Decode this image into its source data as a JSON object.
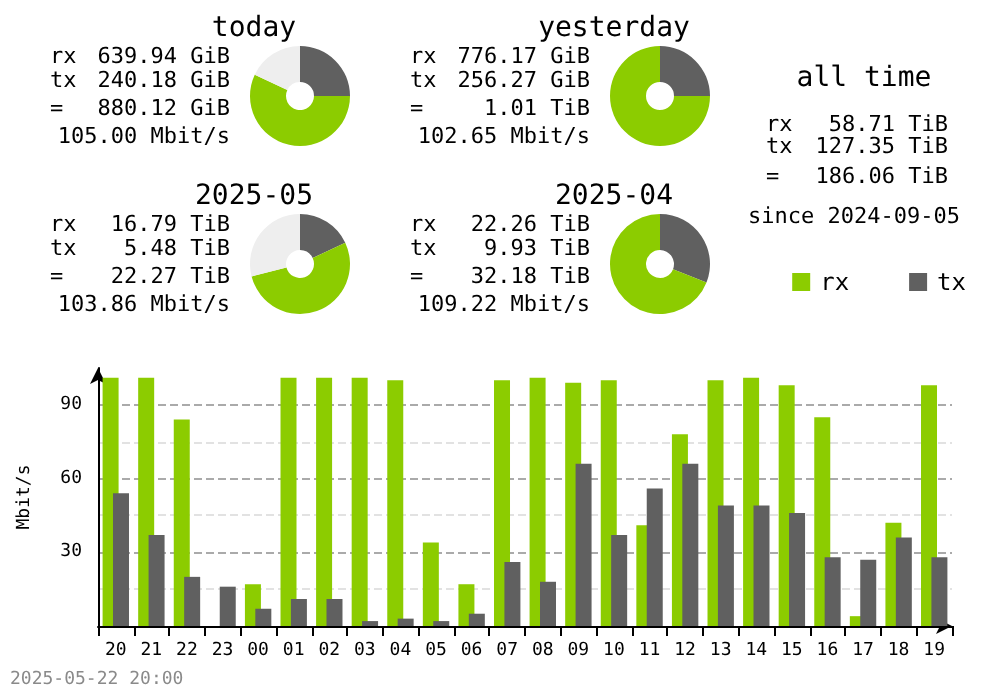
{
  "chart_data": [
    {
      "type": "donut",
      "title": "today",
      "categories": [
        null,
        null,
        null
      ],
      "values": [
        25,
        57,
        18
      ],
      "colors": [
        "#606060",
        "#8ccc00",
        "#eeeeee"
      ],
      "annotations": [
        "rx",
        "639.94 GiB",
        "tx",
        "240.18 GiB",
        "=",
        "880.12 GiB",
        "105.00 Mbit/s"
      ]
    },
    {
      "type": "donut",
      "title": "yesterday",
      "categories": [
        null,
        null
      ],
      "values": [
        25,
        75
      ],
      "colors": [
        "#606060",
        "#8ccc00"
      ],
      "annotations": [
        "rx",
        "776.17 GiB",
        "tx",
        "256.27 GiB",
        "=",
        "1.01 TiB",
        "102.65 Mbit/s"
      ]
    },
    {
      "type": "other",
      "title": "all time",
      "annotations": [
        "rx",
        "58.71 TiB",
        "tx",
        "127.35 TiB",
        "=",
        "186.06 TiB",
        "since 2024-09-05"
      ]
    },
    {
      "type": "donut",
      "title": "2025-05",
      "categories": [
        null,
        null,
        null
      ],
      "values": [
        18,
        53,
        29
      ],
      "colors": [
        "#606060",
        "#8ccc00",
        "#eeeeee"
      ],
      "annotations": [
        "rx",
        "16.79 TiB",
        "tx",
        "5.48 TiB",
        "=",
        "22.27 TiB",
        "103.86 Mbit/s"
      ]
    },
    {
      "type": "donut",
      "title": "2025-04",
      "categories": [
        null,
        null
      ],
      "values": [
        31,
        69
      ],
      "colors": [
        "#606060",
        "#8ccc00"
      ],
      "annotations": [
        "rx",
        "22.26 TiB",
        "tx",
        "9.93 TiB",
        "=",
        "32.18 TiB",
        "109.22 Mbit/s"
      ]
    },
    {
      "type": "bar",
      "ylabel": "Mbit/s",
      "categories": [
        "20",
        "21",
        "22",
        "23",
        "00",
        "01",
        "02",
        "03",
        "04",
        "05",
        "06",
        "07",
        "08",
        "09",
        "10",
        "11",
        "12",
        "13",
        "14",
        "15",
        "16",
        "17",
        "18",
        "19"
      ],
      "series": [
        {
          "name": "rx",
          "color": "#8ccc00",
          "values": [
            101,
            101,
            84,
            0,
            17,
            101,
            101,
            101,
            100,
            34,
            17,
            100,
            101,
            99,
            100,
            41,
            78,
            100,
            101,
            98,
            85,
            4,
            42,
            98
          ]
        },
        {
          "name": "tx",
          "color": "#606060",
          "values": [
            54,
            37,
            20,
            16,
            7,
            11,
            11,
            2,
            3,
            2,
            5,
            26,
            18,
            66,
            37,
            56,
            66,
            49,
            49,
            46,
            28,
            27,
            36,
            28
          ]
        }
      ],
      "ylim": [
        0,
        105
      ],
      "yticks": [
        {
          "value": 0,
          "label": null
        },
        {
          "value": 15,
          "label": null
        },
        30,
        {
          "value": 45,
          "label": null
        },
        60,
        {
          "value": 75,
          "label": null
        },
        90
      ],
      "grid": "y",
      "legend": "top right",
      "annotations": [
        "2025-05-22 20:00"
      ]
    }
  ]
}
